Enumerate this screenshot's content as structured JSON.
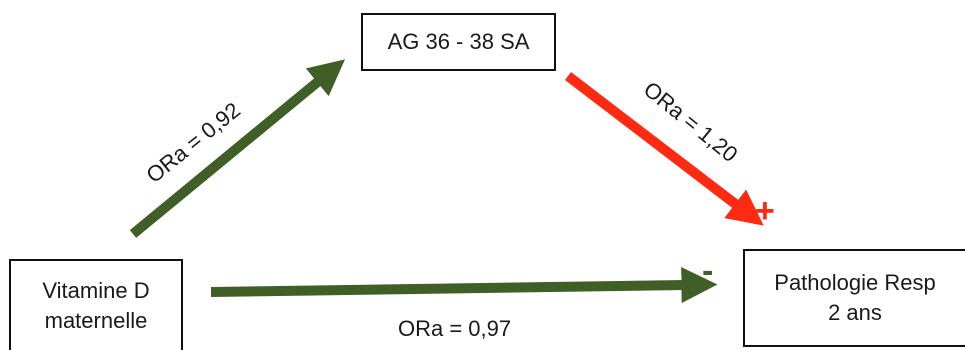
{
  "nodes": {
    "ag": {
      "label": "AG 36 - 38 SA"
    },
    "vitd": {
      "line1": "Vitamine D",
      "line2": "maternelle"
    },
    "patho": {
      "line1": "Pathologie Resp",
      "line2": "2 ans"
    }
  },
  "edges": {
    "vitd_to_ag": {
      "label": "ORa = 0,92",
      "color": "#3f5f27"
    },
    "ag_to_patho": {
      "label": "ORa = 1,20",
      "color": "#ff2a12",
      "sign": "+"
    },
    "vitd_to_patho": {
      "label": "ORa = 0,97",
      "color": "#3f5f27",
      "sign": "-"
    }
  }
}
